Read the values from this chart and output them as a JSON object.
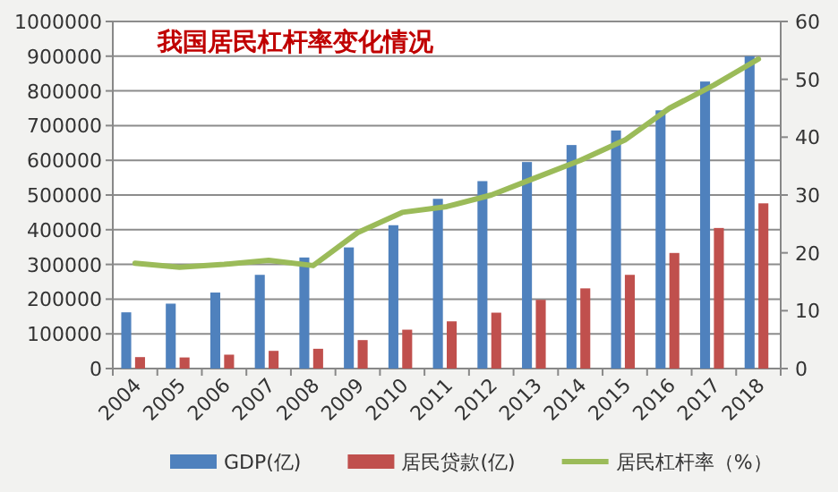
{
  "chart_data": {
    "type": "bar",
    "title": "我国居民杠杆率变化情况",
    "categories": [
      "2004",
      "2005",
      "2006",
      "2007",
      "2008",
      "2009",
      "2010",
      "2011",
      "2012",
      "2013",
      "2014",
      "2015",
      "2016",
      "2017",
      "2018"
    ],
    "series": [
      {
        "name": "GDP(亿)",
        "color": "#4f81bd",
        "values": [
          162000,
          187000,
          219000,
          270000,
          320000,
          349000,
          413000,
          489000,
          540000,
          595000,
          644000,
          686000,
          744000,
          827000,
          900000
        ]
      },
      {
        "name": "居民贷款(亿)",
        "color": "#c0504d",
        "values": [
          33000,
          32000,
          40000,
          51000,
          57000,
          82000,
          112000,
          136000,
          161000,
          198000,
          231000,
          270000,
          333000,
          405000,
          476000
        ]
      },
      {
        "name": "居民杠杆率（%）",
        "color": "#9bbb59",
        "type": "line",
        "axis": "y2",
        "marker": "none",
        "values": [
          18.2,
          17.5,
          18,
          18.7,
          17.8,
          23.5,
          27,
          28,
          30,
          33,
          36,
          39.5,
          45,
          49,
          53.5
        ]
      }
    ],
    "ylim": [
      0,
      1000000
    ],
    "yticks": [
      0,
      100000,
      200000,
      300000,
      400000,
      500000,
      600000,
      700000,
      800000,
      900000,
      1000000
    ],
    "y2lim": [
      0,
      60
    ],
    "y2ticks": [
      0,
      10,
      20,
      30,
      40,
      50,
      60
    ],
    "grid": "y",
    "legend": "bottom"
  }
}
